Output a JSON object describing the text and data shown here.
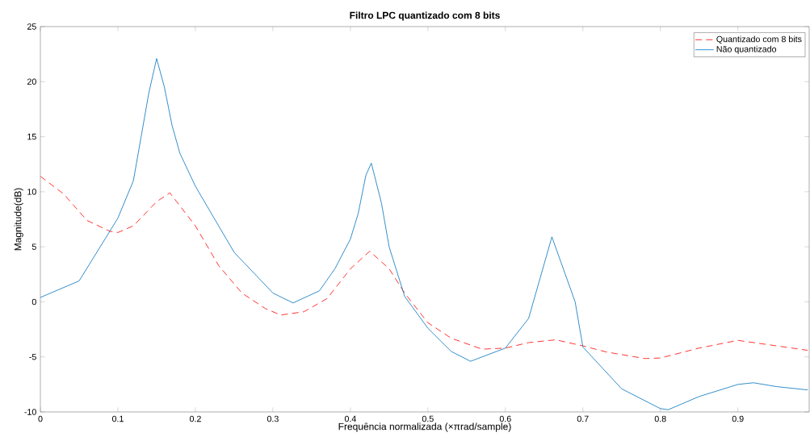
{
  "chart_data": {
    "type": "line",
    "title": "Filtro LPC quantizado com 8 bits",
    "xlabel": "Frequência normalizada (×πrad/sample)",
    "ylabel": "Magnitude(dB)",
    "xlim": [
      0,
      0.992
    ],
    "ylim": [
      -10,
      25
    ],
    "xticks": [
      0,
      0.1,
      0.2,
      0.3,
      0.4,
      0.5,
      0.6,
      0.7,
      0.8,
      0.9
    ],
    "yticks": [
      -10,
      -5,
      0,
      5,
      10,
      15,
      20,
      25
    ],
    "legend": "top right",
    "grid": false,
    "series": [
      {
        "name": "Quantizado com 8 bits",
        "color": "#ff0000",
        "line_style": "dashed",
        "x": [
          0,
          0.03,
          0.06,
          0.09,
          0.1,
          0.12,
          0.15,
          0.167,
          0.2,
          0.23,
          0.26,
          0.29,
          0.31,
          0.34,
          0.37,
          0.4,
          0.425,
          0.45,
          0.47,
          0.5,
          0.53,
          0.57,
          0.6,
          0.63,
          0.665,
          0.7,
          0.73,
          0.78,
          0.8,
          0.85,
          0.9,
          0.95,
          0.99
        ],
        "values": [
          11.4,
          9.8,
          7.4,
          6.4,
          6.3,
          6.9,
          9.1,
          9.9,
          6.9,
          3.3,
          0.8,
          -0.6,
          -1.2,
          -0.9,
          0.3,
          3.0,
          4.6,
          3.0,
          0.8,
          -1.9,
          -3.3,
          -4.3,
          -4.2,
          -3.7,
          -3.45,
          -4.0,
          -4.55,
          -5.15,
          -5.1,
          -4.2,
          -3.5,
          -4.0,
          -4.4
        ]
      },
      {
        "name": "Não quantizado",
        "color": "#0072bd",
        "line_style": "solid",
        "x": [
          0,
          0.05,
          0.1,
          0.12,
          0.13,
          0.14,
          0.15,
          0.16,
          0.17,
          0.18,
          0.2,
          0.25,
          0.3,
          0.326,
          0.36,
          0.38,
          0.4,
          0.41,
          0.42,
          0.427,
          0.44,
          0.45,
          0.47,
          0.5,
          0.53,
          0.555,
          0.6,
          0.63,
          0.66,
          0.69,
          0.7,
          0.75,
          0.8,
          0.81,
          0.85,
          0.9,
          0.92,
          0.95,
          0.99
        ],
        "values": [
          0.4,
          1.9,
          7.6,
          11,
          15,
          19,
          22.1,
          19.5,
          16,
          13.5,
          10.5,
          4.5,
          0.8,
          -0.1,
          1.0,
          3.0,
          5.7,
          8,
          11.5,
          12.6,
          9,
          5,
          0.5,
          -2.4,
          -4.5,
          -5.4,
          -4.2,
          -1.5,
          5.9,
          0,
          -4.1,
          -7.9,
          -9.7,
          -9.8,
          -8.6,
          -7.5,
          -7.35,
          -7.7,
          -8.0
        ]
      }
    ]
  }
}
